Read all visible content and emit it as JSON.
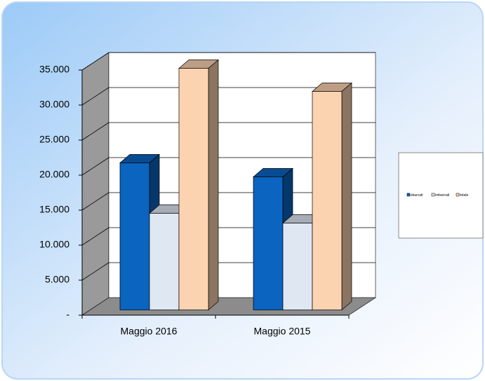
{
  "chart_data": {
    "type": "bar3d",
    "categories": [
      "Maggio 2016",
      "Maggio 2015"
    ],
    "series": [
      {
        "name": "sbarcati",
        "color": "#0a64c0",
        "values": [
          21000,
          19000
        ]
      },
      {
        "name": "imbarcati",
        "color": "#dfe7f2",
        "values": [
          13800,
          12400
        ]
      },
      {
        "name": "totale",
        "color": "#fcd3b0",
        "values": [
          34500,
          31200
        ]
      }
    ],
    "ylim": [
      0,
      35000
    ],
    "yticks": [
      {
        "value": 0,
        "label": "-"
      },
      {
        "value": 5000,
        "label": "5.000"
      },
      {
        "value": 10000,
        "label": "10.000"
      },
      {
        "value": 15000,
        "label": "15.000"
      },
      {
        "value": 20000,
        "label": "20.000"
      },
      {
        "value": 25000,
        "label": "25.000"
      },
      {
        "value": 30000,
        "label": "30.000"
      },
      {
        "value": 35000,
        "label": "35.000"
      }
    ],
    "grid": true
  }
}
